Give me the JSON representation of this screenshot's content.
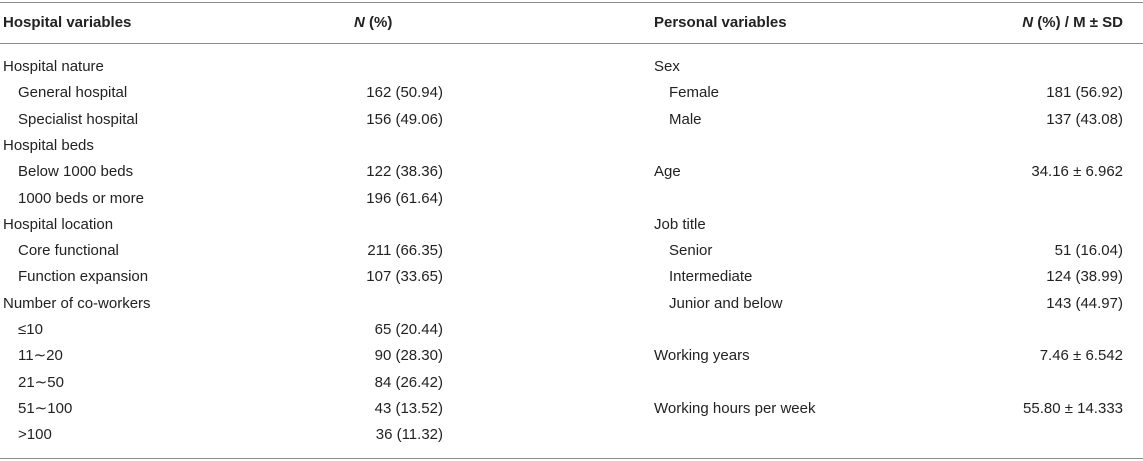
{
  "header": {
    "left_col1": "Hospital variables",
    "left_col2_italic": "N",
    "left_col2_rest": " (%)",
    "right_col1": "Personal variables",
    "right_col2_italic": "N",
    "right_col2_rest": " (%) / M ± SD"
  },
  "left_rows": [
    {
      "label": "Hospital nature",
      "value": "",
      "indent": false
    },
    {
      "label": "General hospital",
      "value": "162 (50.94)",
      "indent": true
    },
    {
      "label": "Specialist hospital",
      "value": "156 (49.06)",
      "indent": true
    },
    {
      "label": "Hospital beds",
      "value": "",
      "indent": false
    },
    {
      "label": "Below 1000 beds",
      "value": "122 (38.36)",
      "indent": true
    },
    {
      "label": "1000 beds or more",
      "value": "196 (61.64)",
      "indent": true
    },
    {
      "label": "Hospital location",
      "value": "",
      "indent": false
    },
    {
      "label": "Core functional",
      "value": "211 (66.35)",
      "indent": true
    },
    {
      "label": "Function expansion",
      "value": "107 (33.65)",
      "indent": true
    },
    {
      "label": "Number of co-workers",
      "value": "",
      "indent": false
    },
    {
      "label": "≤10",
      "value": "65 (20.44)",
      "indent": true
    },
    {
      "label": "11∼20",
      "value": "90 (28.30)",
      "indent": true
    },
    {
      "label": "21∼50",
      "value": "84 (26.42)",
      "indent": true
    },
    {
      "label": "51∼100",
      "value": "43 (13.52)",
      "indent": true
    },
    {
      "label": ">100",
      "value": "36 (11.32)",
      "indent": true
    }
  ],
  "right_rows": [
    {
      "label": "Sex",
      "value": "",
      "indent": false
    },
    {
      "label": "Female",
      "value": "181 (56.92)",
      "indent": true
    },
    {
      "label": "Male",
      "value": "137 (43.08)",
      "indent": true
    },
    {
      "label": "",
      "value": "",
      "indent": false
    },
    {
      "label": "Age",
      "value": "34.16 ± 6.962",
      "indent": false
    },
    {
      "label": "",
      "value": "",
      "indent": false
    },
    {
      "label": "Job title",
      "value": "",
      "indent": false
    },
    {
      "label": "Senior",
      "value": "51 (16.04)",
      "indent": true
    },
    {
      "label": "Intermediate",
      "value": "124 (38.99)",
      "indent": true
    },
    {
      "label": "Junior and below",
      "value": "143 (44.97)",
      "indent": true
    },
    {
      "label": "",
      "value": "",
      "indent": false
    },
    {
      "label": "Working years",
      "value": "7.46 ± 6.542",
      "indent": false
    },
    {
      "label": "",
      "value": "",
      "indent": false
    },
    {
      "label": "Working hours per week",
      "value": "55.80 ± 14.333",
      "indent": false
    },
    {
      "label": "",
      "value": "",
      "indent": false
    }
  ]
}
